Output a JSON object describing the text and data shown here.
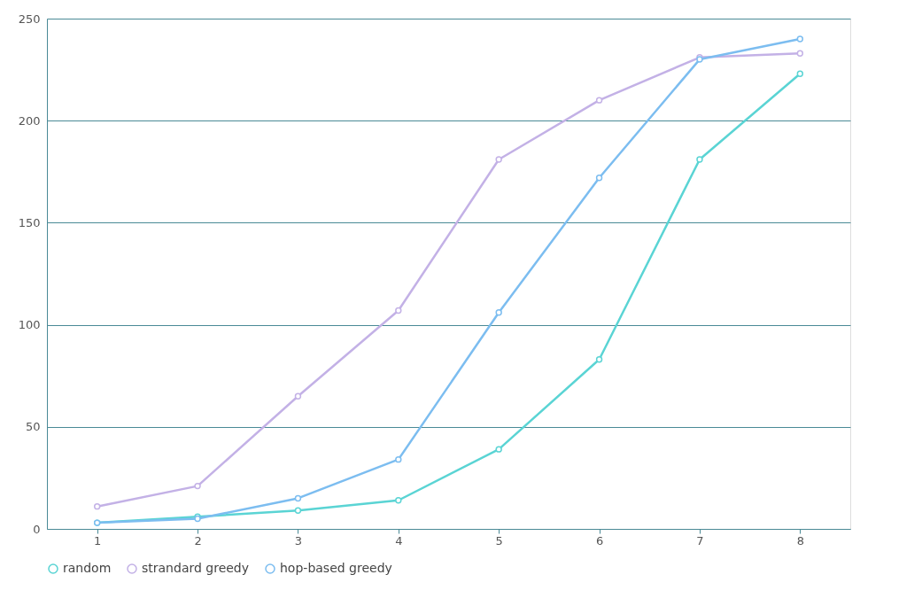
{
  "chart_data": {
    "type": "line",
    "categories": [
      "1",
      "2",
      "3",
      "4",
      "5",
      "6",
      "7",
      "8"
    ],
    "series": [
      {
        "name": "random",
        "color": "#5ad4d4",
        "values": [
          3,
          6,
          9,
          14,
          39,
          83,
          181,
          223
        ]
      },
      {
        "name": "strandard greedy",
        "color": "#c3b1e6",
        "values": [
          11,
          21,
          65,
          107,
          181,
          210,
          231,
          233
        ]
      },
      {
        "name": "hop-based greedy",
        "color": "#7cbdf0",
        "values": [
          3,
          5,
          15,
          34,
          106,
          172,
          230,
          240
        ]
      }
    ],
    "ylim": [
      0,
      250
    ],
    "yticks": [
      0,
      50,
      100,
      150,
      200,
      250
    ],
    "grid": "y",
    "legend": "bottom",
    "marker": "circle",
    "line_style": "solid"
  }
}
